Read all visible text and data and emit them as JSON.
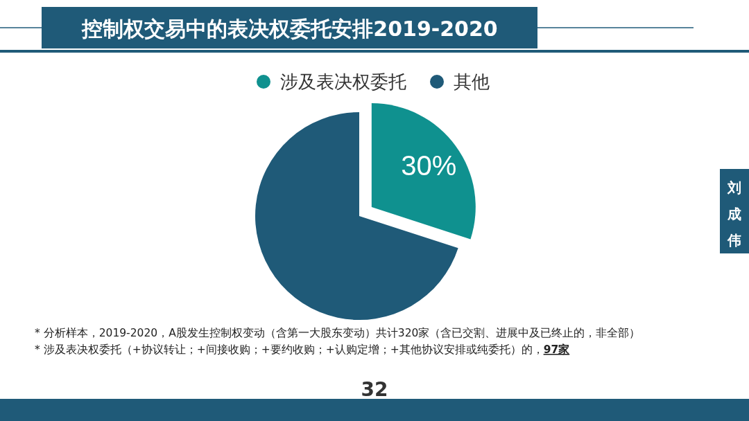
{
  "chart_data": {
    "type": "pie",
    "title": "控制权交易中的表决权委托安排2019-2020",
    "categories": [
      "涉及表决权委托",
      "其他"
    ],
    "values": [
      30,
      70
    ],
    "colors": [
      "#0f918f",
      "#1f5a78"
    ],
    "value_labels": [
      "30%",
      null
    ],
    "legend": "top",
    "annotations": [
      "* 分析样本，2019-2020，A股发生控制权变动（含第一大股东变动）共计320家（含已交割、进展中及已终止的，非全部）",
      "* 涉及表决权委托（+协议转让；+间接收购；+要约收购；+认购定增；+其他协议安排或纯委托）的，**97家**",
      "32",
      "刘成伟"
    ]
  }
}
